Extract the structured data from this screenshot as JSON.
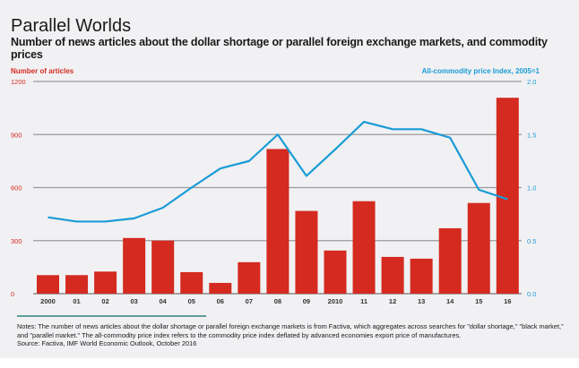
{
  "chart_data": {
    "type": "bar+line",
    "title": "Parallel Worlds",
    "subtitle": "Number of news articles about the dollar shortage or parallel foreign exchange markets, and commodity prices",
    "categories": [
      "2000",
      "01",
      "02",
      "03",
      "04",
      "05",
      "06",
      "07",
      "08",
      "09",
      "2010",
      "11",
      "12",
      "13",
      "14",
      "15",
      "16"
    ],
    "left_axis": {
      "label": "Number of articles",
      "ticks": [
        "0",
        "300",
        "600",
        "900",
        "1200"
      ],
      "ylim": [
        0,
        1200
      ],
      "color": "#d42a20"
    },
    "right_axis": {
      "label": "All-commodity price Index, 2005=1",
      "ticks": [
        "0.0",
        "0.5",
        "1.0",
        "1.5",
        "2.0"
      ],
      "ylim": [
        0,
        2
      ],
      "color": "#1a9bd7"
    },
    "grid": true,
    "series": [
      {
        "type": "bar",
        "axis": "left",
        "color": "#d42a20",
        "values": [
          105,
          105,
          125,
          315,
          300,
          122,
          61,
          178,
          818,
          468,
          244,
          523,
          208,
          198,
          370,
          513,
          1108
        ]
      },
      {
        "type": "line",
        "axis": "right",
        "color": "#1a9bd7",
        "values": [
          0.72,
          0.68,
          0.68,
          0.71,
          0.81,
          1.0,
          1.18,
          1.25,
          1.5,
          1.11,
          1.36,
          1.62,
          1.55,
          1.55,
          1.47,
          0.98,
          0.89
        ]
      }
    ]
  },
  "notes": "Notes: The number of news articles about the dollar shortage or parallel foreign exchange markets is from Factiva, which aggregates across searches for \"dollar shortage,\" \"black market,\" and \"parallel market.\" The all-commodity price index refers to the commodity price index deflated by advanced economies export price of manufactures.",
  "source": "Source: Factiva, IMF World Economic Outlook, October 2016"
}
